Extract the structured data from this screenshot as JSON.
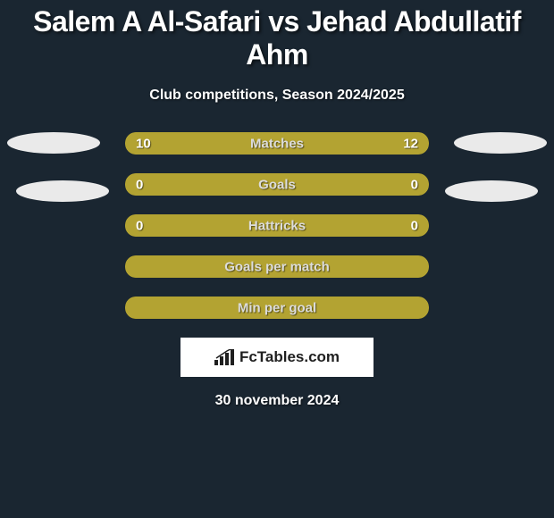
{
  "title": "Salem A Al-Safari vs Jehad Abdullatif Ahm",
  "subtitle": "Club competitions, Season 2024/2025",
  "date": "30 november 2024",
  "brand": "FcTables.com",
  "colors": {
    "background": "#1a2631",
    "bar_base": "#887e28",
    "bar_fill": "#b3a332",
    "text": "#ffffff"
  },
  "avatars": {
    "left": true,
    "right": true
  },
  "stats": [
    {
      "label": "Matches",
      "left_val": "10",
      "right_val": "12",
      "left_pct": 45,
      "right_pct": 55,
      "show_vals": true
    },
    {
      "label": "Goals",
      "left_val": "0",
      "right_val": "0",
      "left_pct": 50,
      "right_pct": 50,
      "show_vals": true
    },
    {
      "label": "Hattricks",
      "left_val": "0",
      "right_val": "0",
      "left_pct": 50,
      "right_pct": 50,
      "show_vals": true
    },
    {
      "label": "Goals per match",
      "left_val": "",
      "right_val": "",
      "left_pct": 50,
      "right_pct": 50,
      "show_vals": false
    },
    {
      "label": "Min per goal",
      "left_val": "",
      "right_val": "",
      "left_pct": 50,
      "right_pct": 50,
      "show_vals": false
    }
  ]
}
